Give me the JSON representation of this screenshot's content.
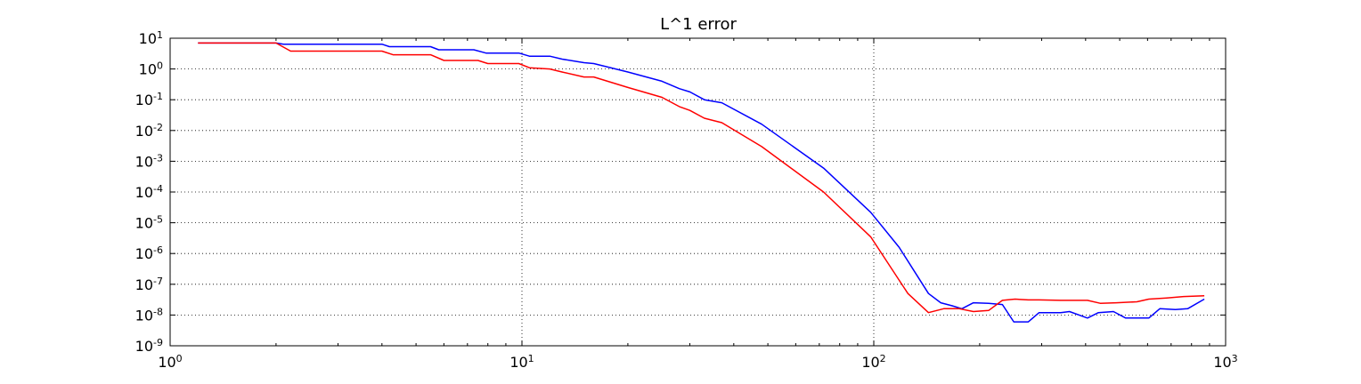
{
  "chart_data": {
    "type": "line",
    "title": "L^1 error",
    "xlabel": "",
    "ylabel": "",
    "xscale": "log",
    "yscale": "log",
    "xlim": [
      1,
      1000
    ],
    "ylim": [
      1e-09,
      10
    ],
    "grid": true,
    "x_ticks": [
      {
        "base": "10",
        "exp": "0",
        "value": 1
      },
      {
        "base": "10",
        "exp": "1",
        "value": 10
      },
      {
        "base": "10",
        "exp": "2",
        "value": 100
      },
      {
        "base": "10",
        "exp": "3",
        "value": 1000
      }
    ],
    "y_ticks": [
      {
        "base": "10",
        "exp": "-9",
        "value": 1e-09
      },
      {
        "base": "10",
        "exp": "-8",
        "value": 1e-08
      },
      {
        "base": "10",
        "exp": "-7",
        "value": 1e-07
      },
      {
        "base": "10",
        "exp": "-6",
        "value": 1e-06
      },
      {
        "base": "10",
        "exp": "-5",
        "value": 1e-05
      },
      {
        "base": "10",
        "exp": "-4",
        "value": 0.0001
      },
      {
        "base": "10",
        "exp": "-3",
        "value": 0.001
      },
      {
        "base": "10",
        "exp": "-2",
        "value": 0.01
      },
      {
        "base": "10",
        "exp": "-1",
        "value": 0.1
      },
      {
        "base": "10",
        "exp": "0",
        "value": 1
      },
      {
        "base": "10",
        "exp": "1",
        "value": 10
      }
    ],
    "series": [
      {
        "color": "#0000ff",
        "x": [
          1.2,
          2.0,
          2.1,
          4.0,
          4.2,
          5.5,
          5.8,
          7.3,
          7.9,
          9.8,
          10.5,
          12.0,
          13.0,
          15.0,
          16.0,
          20.0,
          25.0,
          28.0,
          30.0,
          33.0,
          37.0,
          48.0,
          72.0,
          98.0,
          118.0,
          130.0,
          143.0,
          155.0,
          167.0,
          178.0,
          192.0,
          212.0,
          232.0,
          250.0,
          275.0,
          295.0,
          340.0,
          360.0,
          405.0,
          435.0,
          480.0,
          520.0,
          560.0,
          605.0,
          650.0,
          720.0,
          780.0,
          870.0
        ],
        "y": [
          7.0,
          7.0,
          6.4,
          6.4,
          5.3,
          5.3,
          4.2,
          4.2,
          3.3,
          3.3,
          2.6,
          2.6,
          2.1,
          1.6,
          1.5,
          0.8,
          0.4,
          0.23,
          0.18,
          0.1,
          0.08,
          0.016,
          0.0006,
          2.2e-05,
          1.6e-06,
          2.8e-07,
          5e-08,
          2.5e-08,
          2e-08,
          1.6e-08,
          2.5e-08,
          2.4e-08,
          2.2e-08,
          6e-09,
          6e-09,
          1.2e-08,
          1.2e-08,
          1.3e-08,
          8e-09,
          1.2e-08,
          1.3e-08,
          8e-09,
          8e-09,
          8e-09,
          1.6e-08,
          1.5e-08,
          1.6e-08,
          3.3e-08
        ]
      },
      {
        "color": "#ff0000",
        "x": [
          1.2,
          2.0,
          2.2,
          4.0,
          4.3,
          5.5,
          6.0,
          7.5,
          8.0,
          9.8,
          10.5,
          12.0,
          13.0,
          15.0,
          16.0,
          20.0,
          25.0,
          28.0,
          30.0,
          33.0,
          37.0,
          48.0,
          72.0,
          98.0,
          125.0,
          143.0,
          158.0,
          175.0,
          192.0,
          212.0,
          232.0,
          252.0,
          275.0,
          295.0,
          340.0,
          360.0,
          405.0,
          440.0,
          490.0,
          560.0,
          605.0,
          680.0,
          760.0,
          870.0
        ],
        "y": [
          7.0,
          7.0,
          3.8,
          3.8,
          2.9,
          2.9,
          1.9,
          1.9,
          1.5,
          1.5,
          1.1,
          1.0,
          0.8,
          0.55,
          0.55,
          0.25,
          0.12,
          0.06,
          0.045,
          0.025,
          0.018,
          0.003,
          0.0001,
          3.5e-06,
          5e-08,
          1.2e-08,
          1.6e-08,
          1.6e-08,
          1.3e-08,
          1.4e-08,
          3e-08,
          3.3e-08,
          3.1e-08,
          3.1e-08,
          3e-08,
          3e-08,
          3e-08,
          2.4e-08,
          2.5e-08,
          2.7e-08,
          3.3e-08,
          3.6e-08,
          4e-08,
          4.2e-08
        ]
      }
    ]
  }
}
